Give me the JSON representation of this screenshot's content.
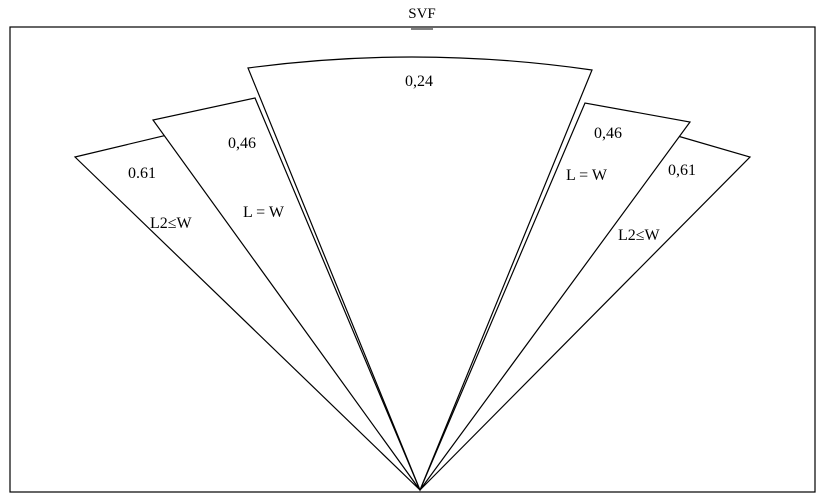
{
  "title": "SVF",
  "sectors": [
    {
      "id": "left-outer",
      "value": "0.61",
      "condition": "L2≤W"
    },
    {
      "id": "left-middle",
      "value": "0,46",
      "condition": "L = W"
    },
    {
      "id": "center",
      "value": "0,24",
      "condition": ""
    },
    {
      "id": "right-middle",
      "value": "0,46",
      "condition": "L = W"
    },
    {
      "id": "right-outer",
      "value": "0,61",
      "condition": "L2≤W"
    }
  ]
}
